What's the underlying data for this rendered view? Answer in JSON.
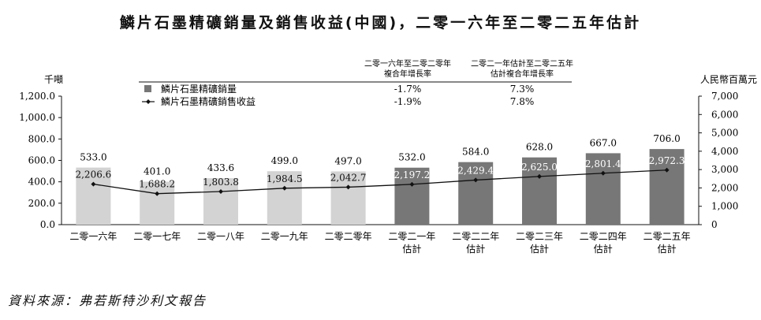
{
  "title": "鱗片石墨精礦銷量及銷售收益(中國)，二零一六年至二零二五年估計",
  "source": "資料來源：弗若斯特沙利文報告",
  "colors": {
    "actual_bar": "#d3d3d3",
    "forecast_bar": "#777777",
    "line": "#111111"
  },
  "header": {
    "cagr_hist_label_1": "二零一六年至二零二零年",
    "cagr_hist_label_2": "複合年增長率",
    "cagr_fc_label_1": "二零二一年估計至二零二五年",
    "cagr_fc_label_2": "估計複合年增長率"
  },
  "legend": [
    {
      "label": "鱗片石墨精礦銷量",
      "cagr_hist": "-1.7%",
      "cagr_fc": "7.3%",
      "icon": "gray-square-icon"
    },
    {
      "label": "鱗片石墨精礦銷售收益",
      "cagr_hist": "-1.9%",
      "cagr_fc": "7.8%",
      "icon": "line-diamond-icon"
    }
  ],
  "chart_data": {
    "type": "bar",
    "categories": [
      [
        "二零一六年"
      ],
      [
        "二零一七年"
      ],
      [
        "二零一八年"
      ],
      [
        "二零一九年"
      ],
      [
        "二零二零年"
      ],
      [
        "二零二一年",
        "估計"
      ],
      [
        "二零二二年",
        "估計"
      ],
      [
        "二零二三年",
        "估計"
      ],
      [
        "二零二四年",
        "估計"
      ],
      [
        "二零二五年",
        "估計"
      ]
    ],
    "forecast_from_index": 5,
    "left_axis": {
      "unit": "千噸",
      "ylim": [
        0,
        1200
      ],
      "ticks": [
        "0.0",
        "200.0",
        "400.0",
        "600.0",
        "800.0",
        "1,000.0",
        "1,200.0"
      ]
    },
    "right_axis": {
      "unit": "人民幣百萬元",
      "ylim": [
        0,
        7000
      ],
      "ticks": [
        "0",
        "1,000",
        "2,000",
        "3,000",
        "4,000",
        "5,000",
        "6,000",
        "7,000"
      ]
    },
    "series": [
      {
        "name": "鱗片石墨精礦銷量",
        "type": "bar",
        "axis": "left",
        "values": [
          533.0,
          401.0,
          433.6,
          499.0,
          497.0,
          532.0,
          584.0,
          628.0,
          667.0,
          706.0
        ],
        "labels": [
          "533.0",
          "401.0",
          "433.6",
          "499.0",
          "497.0",
          "532.0",
          "584.0",
          "628.0",
          "667.0",
          "706.0"
        ]
      },
      {
        "name": "鱗片石墨精礦銷售收益",
        "type": "line",
        "axis": "right",
        "values": [
          2206.6,
          1688.2,
          1803.8,
          1984.5,
          2042.7,
          2197.2,
          2429.4,
          2625.0,
          2801.4,
          2972.3
        ],
        "labels": [
          "2,206.6",
          "1,688.2",
          "1,803.8",
          "1,984.5",
          "2,042.7",
          "2,197.2",
          "2,429.4",
          "2,625.0",
          "2,801.4",
          "2,972.3"
        ]
      }
    ]
  }
}
